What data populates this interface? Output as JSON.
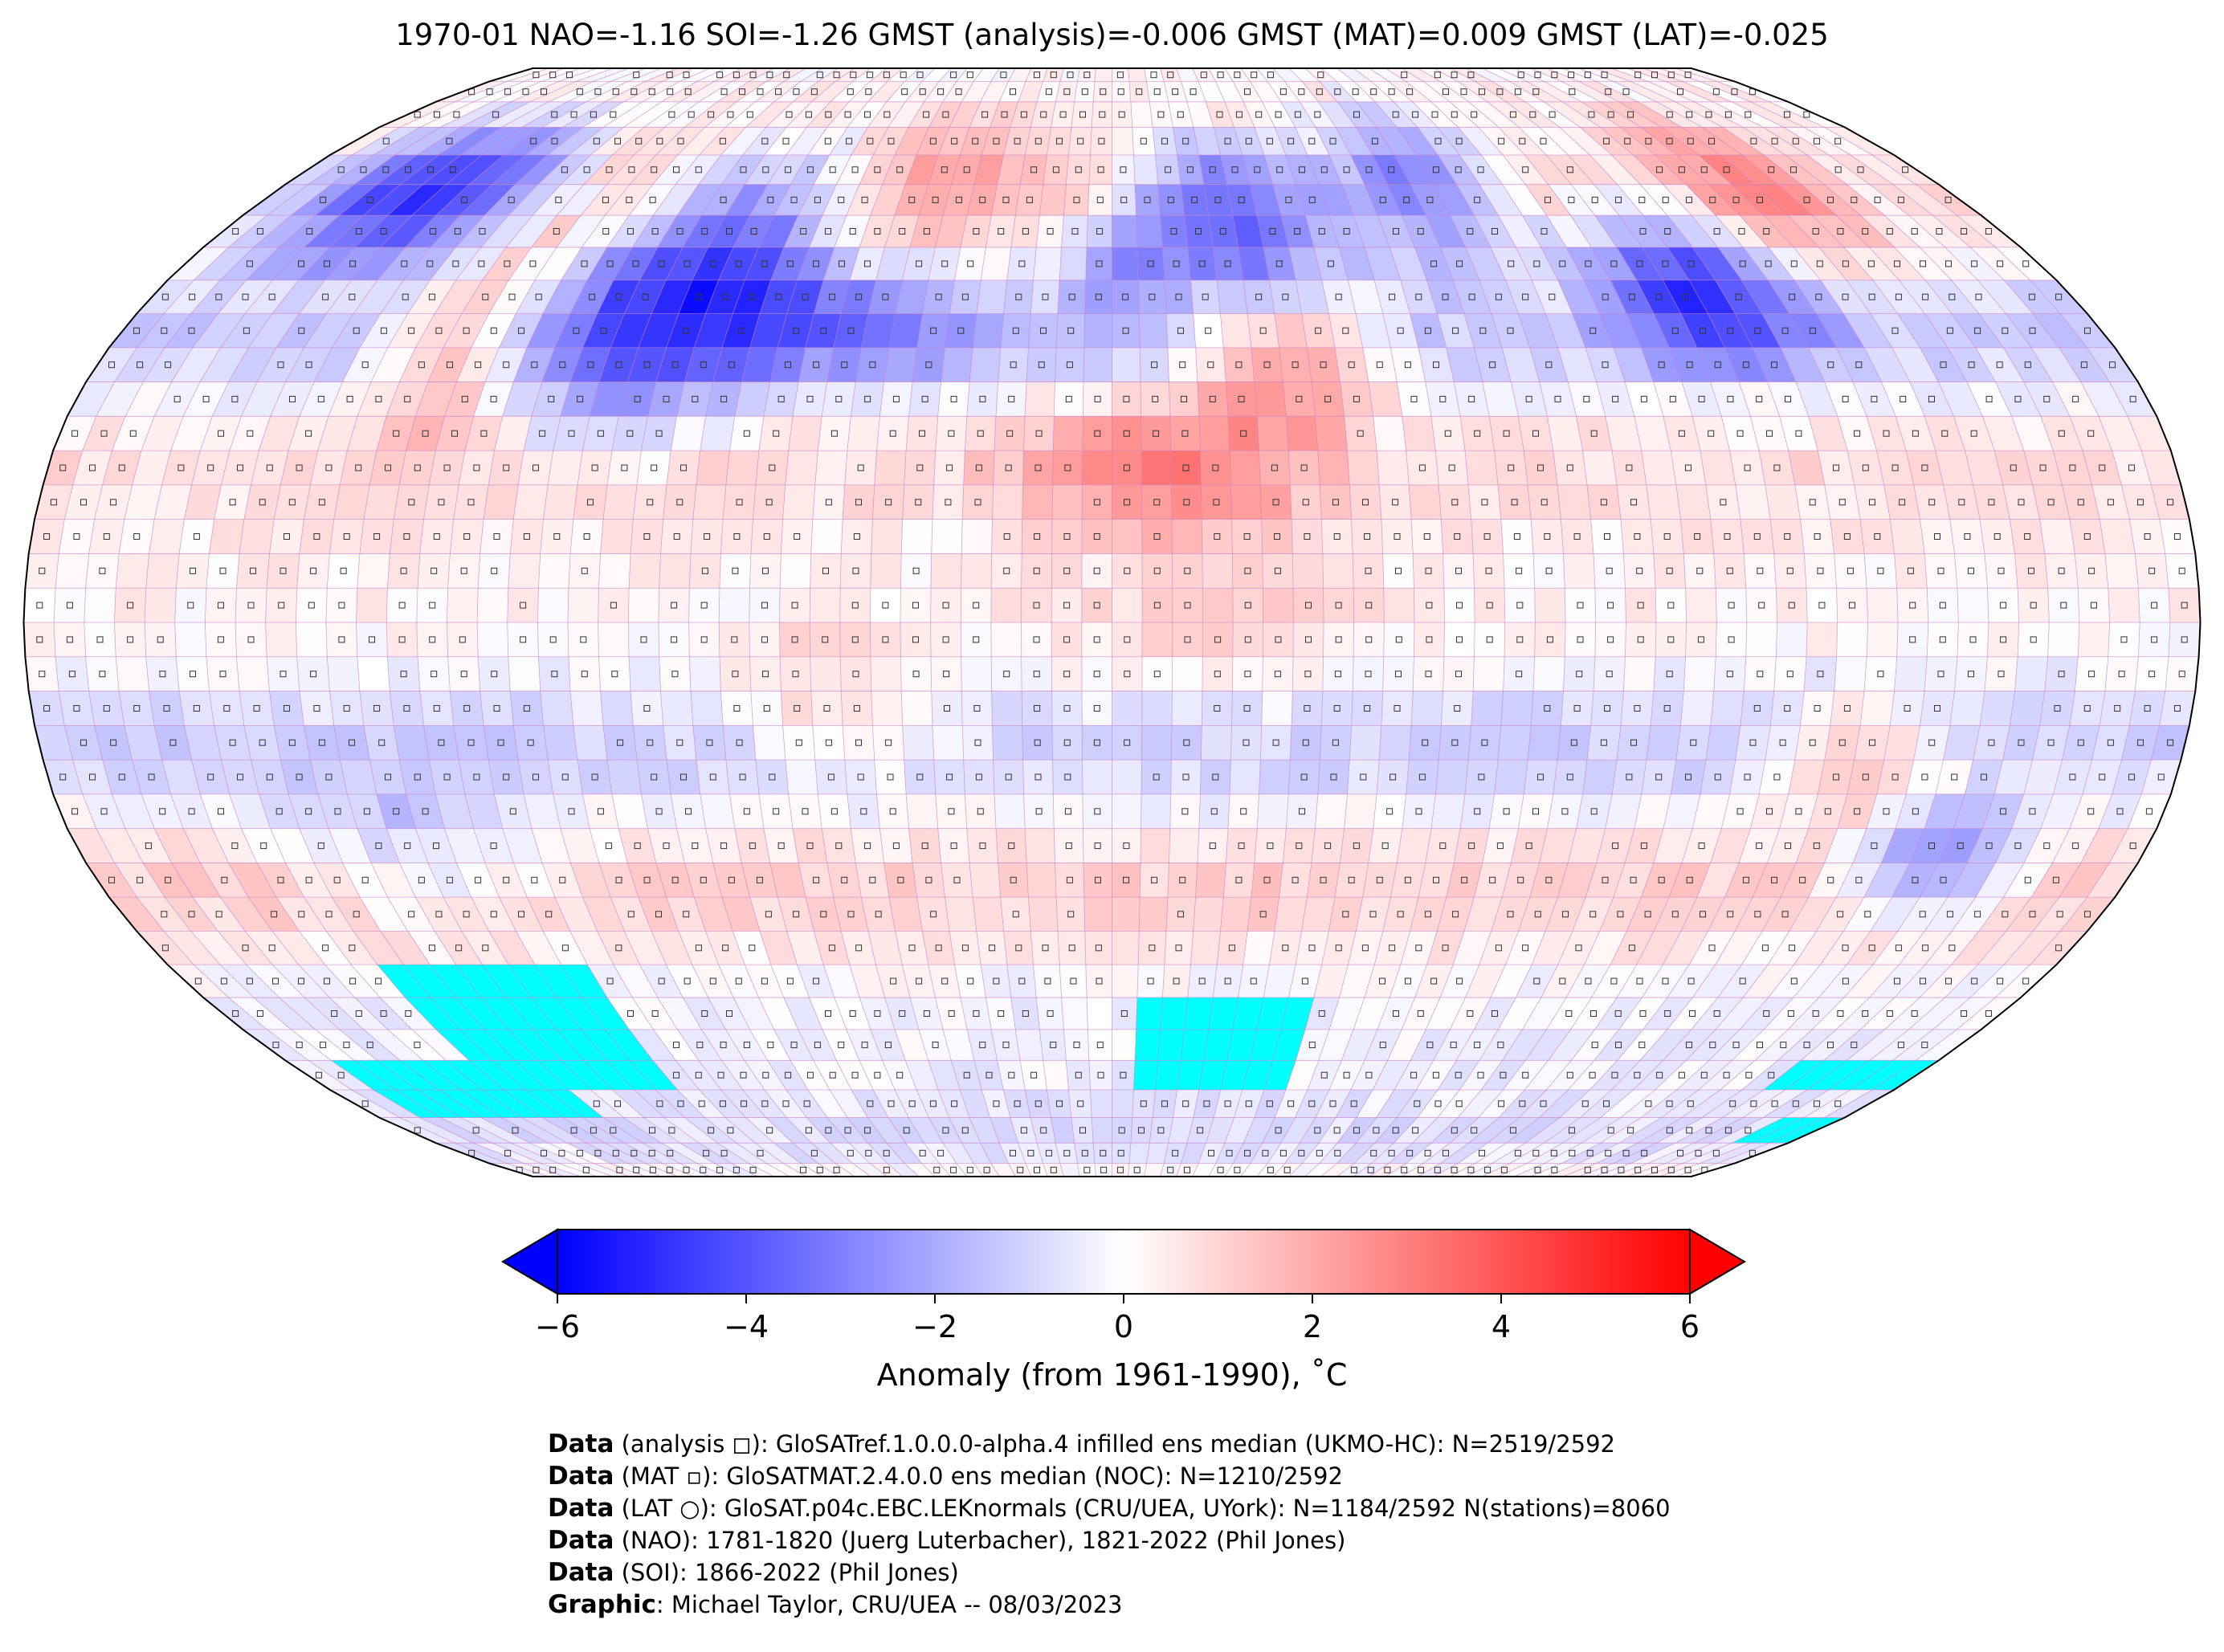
{
  "title": "1970-01 NAO=-1.16 SOI=-1.26 GMST (analysis)=-0.006 GMST (MAT)=0.009 GMST (LAT)=-0.025",
  "map": {
    "projection": "Robinson",
    "grid_resolution_deg": 5,
    "colors": {
      "cold": "#0000ff",
      "neutral": "#ffffff",
      "warm": "#ff0000",
      "missing": "#00ffff",
      "gridline": "#c77ec7",
      "outline": "#000000"
    },
    "markers": {
      "analysis": "square",
      "mat": "small filled square",
      "lat": "circle"
    },
    "anomaly_regions": [
      {
        "lon": [
          -170,
          -125
        ],
        "lat": [
          55,
          72
        ],
        "value": -5.5
      },
      {
        "lon": [
          -125,
          -105
        ],
        "lat": [
          30,
          50
        ],
        "value": 2.5
      },
      {
        "lon": [
          -105,
          -65
        ],
        "lat": [
          30,
          55
        ],
        "value": -3.5
      },
      {
        "lon": [
          -90,
          -60
        ],
        "lat": [
          50,
          68
        ],
        "value": -3
      },
      {
        "lon": [
          -70,
          -30
        ],
        "lat": [
          38,
          48
        ],
        "value": -2.5
      },
      {
        "lon": [
          -50,
          -20
        ],
        "lat": [
          60,
          75
        ],
        "value": 1.5
      },
      {
        "lon": [
          10,
          40
        ],
        "lat": [
          52,
          70
        ],
        "value": -4.5
      },
      {
        "lon": [
          -5,
          10
        ],
        "lat": [
          48,
          58
        ],
        "value": -2
      },
      {
        "lon": [
          20,
          45
        ],
        "lat": [
          32,
          45
        ],
        "value": 3
      },
      {
        "lon": [
          -10,
          30
        ],
        "lat": [
          15,
          30
        ],
        "value": 2.5
      },
      {
        "lon": [
          50,
          80
        ],
        "lat": [
          55,
          75
        ],
        "value": -3.5
      },
      {
        "lon": [
          95,
          125
        ],
        "lat": [
          40,
          58
        ],
        "value": -4
      },
      {
        "lon": [
          125,
          150
        ],
        "lat": [
          55,
          75
        ],
        "value": 2
      },
      {
        "lon": [
          115,
          135
        ],
        "lat": [
          -25,
          -15
        ],
        "value": 2.5
      },
      {
        "lon": [
          135,
          155
        ],
        "lat": [
          -40,
          -30
        ],
        "value": -3.5
      },
      {
        "lon": [
          -10,
          40
        ],
        "lat": [
          -10,
          10
        ],
        "value": 0.8
      },
      {
        "lon": [
          -140,
          -100
        ],
        "lat": [
          -40,
          -25
        ],
        "value": -1.5
      },
      {
        "lon": [
          -60,
          -30
        ],
        "lat": [
          -20,
          -5
        ],
        "value": 1.5
      }
    ],
    "missing_regions": [
      {
        "lon": [
          -170,
          -125
        ],
        "lat": [
          -75,
          -65
        ]
      },
      {
        "lon": [
          -140,
          -100
        ],
        "lat": [
          -70,
          -50
        ]
      },
      {
        "lon": [
          5,
          40
        ],
        "lat": [
          -70,
          -55
        ]
      },
      {
        "lon": [
          150,
          180
        ],
        "lat": [
          -70,
          -65
        ]
      },
      {
        "lon": [
          165,
          180
        ],
        "lat": [
          -80,
          -75
        ]
      }
    ]
  },
  "colorbar": {
    "min": -6,
    "max": 6,
    "ticks": [
      "−6",
      "−4",
      "−2",
      "0",
      "2",
      "4",
      "6"
    ],
    "extend": "both",
    "label": "Anomaly (from 1961-1990), ˚C",
    "cmap": [
      "#0000ff",
      "#ffffff",
      "#ff0000"
    ]
  },
  "credits": [
    {
      "bold": "Data",
      "text": " (analysis ◻): GloSATref.1.0.0.0-alpha.4 infilled ens median (UKMO-HC): N=2519/2592"
    },
    {
      "bold": "Data",
      "text": " (MAT ▫): GloSATMAT.2.4.0.0 ens median (NOC): N=1210/2592"
    },
    {
      "bold": "Data",
      "text": " (LAT ○): GloSAT.p04c.EBC.LEKnormals (CRU/UEA, UYork): N=1184/2592 N(stations)=8060"
    },
    {
      "bold": "Data",
      "text": " (NAO): 1781-1820 (Juerg Luterbacher), 1821-2022 (Phil Jones)"
    },
    {
      "bold": "Data",
      "text": " (SOI): 1866-2022 (Phil Jones)"
    },
    {
      "bold": "Graphic",
      "text": ": Michael Taylor, CRU/UEA -- 08/03/2023"
    }
  ]
}
